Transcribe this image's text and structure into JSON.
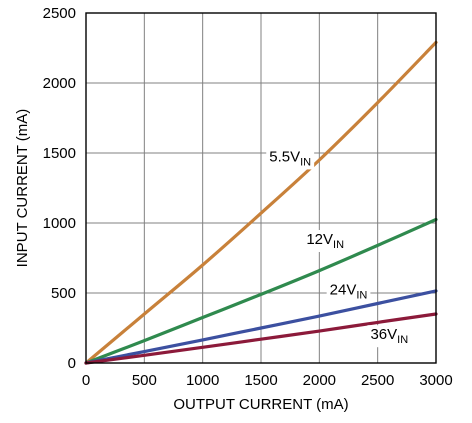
{
  "chart_data": {
    "type": "line",
    "xlabel": "OUTPUT CURRENT (mA)",
    "ylabel": "INPUT CURRENT (mA)",
    "xlim": [
      0,
      3000
    ],
    "ylim": [
      0,
      2500
    ],
    "x_ticks": [
      "0",
      "500",
      "1000",
      "1500",
      "2000",
      "2500",
      "3000"
    ],
    "y_ticks": [
      "0",
      "500",
      "1000",
      "1500",
      "2000",
      "2500"
    ],
    "grid": true,
    "x": [
      0,
      500,
      1000,
      1500,
      2000,
      2500,
      3000
    ],
    "series": [
      {
        "name": "5.5V",
        "sub": "IN",
        "color": "#c8813a",
        "values": [
          0,
          350,
          700,
          1070,
          1450,
          1860,
          2290
        ],
        "label_at": [
          1750,
          1440
        ]
      },
      {
        "name": "12V",
        "sub": "IN",
        "color": "#2f8a4e",
        "values": [
          0,
          160,
          325,
          490,
          660,
          840,
          1025
        ],
        "label_at": [
          2050,
          850
        ]
      },
      {
        "name": "24V",
        "sub": "IN",
        "color": "#3c50a0",
        "values": [
          0,
          82,
          165,
          250,
          335,
          425,
          515
        ],
        "label_at": [
          2250,
          490
        ]
      },
      {
        "name": "36V",
        "sub": "IN",
        "color": "#8c1a3a",
        "values": [
          0,
          55,
          112,
          170,
          228,
          290,
          350
        ],
        "label_at": [
          2600,
          170
        ]
      }
    ]
  }
}
